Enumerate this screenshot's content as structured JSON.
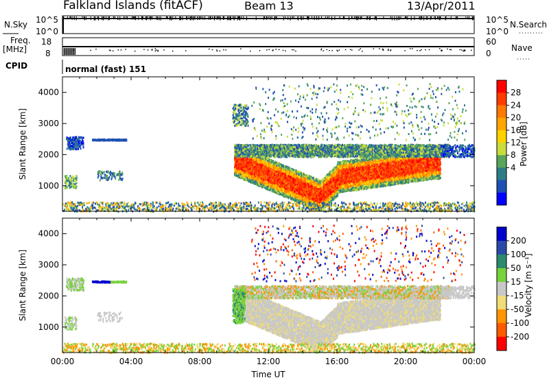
{
  "header": {
    "station": "Falkland Islands (fitACF)",
    "beam": "Beam 13",
    "date": "13/Apr/2011"
  },
  "top_panels": {
    "nsky_label": "N.Sky",
    "nsky_ticks": [
      "10^5",
      "10^0"
    ],
    "nsearch_label": "N.Search",
    "nsearch_ticks": [
      "10^5",
      "10^0"
    ],
    "freq_label": "Freq.",
    "freq_unit": "[MHz]",
    "freq_ticks": [
      "18",
      "8"
    ],
    "nave_label": "Nave",
    "nave_ticks": [
      "60",
      "0"
    ],
    "cpid_label": "CPID",
    "cpid_value": "normal (fast) 151"
  },
  "chart_data": [
    {
      "type": "heatmap",
      "name": "power",
      "ylabel": "Slant Range [km]",
      "yticks": [
        "4000",
        "3000",
        "2000",
        "1000"
      ],
      "ylim": [
        180,
        4500
      ],
      "xlim": [
        0,
        24
      ],
      "colorbar": {
        "label": "Power [dB]",
        "ticks": [
          "28",
          "24",
          "20",
          "16",
          "12",
          "8",
          "4"
        ],
        "colors": [
          "#ff0000",
          "#ff3c00",
          "#ff7800",
          "#ffa500",
          "#ffd200",
          "#c8dc3c",
          "#5aa55a",
          "#2d7d87",
          "#1e50b4",
          "#0000ff"
        ]
      }
    },
    {
      "type": "heatmap",
      "name": "velocity",
      "ylabel": "Slant Range [km]",
      "yticks": [
        "4000",
        "3000",
        "2000",
        "1000"
      ],
      "ylim": [
        180,
        4500
      ],
      "xlim": [
        0,
        24
      ],
      "xticks": [
        "00:00",
        "04:00",
        "08:00",
        "12:00",
        "16:00",
        "20:00",
        "00:00"
      ],
      "xlabel": "Time UT",
      "colorbar": {
        "label": "Velocity [m s⁻¹]",
        "ticks": [
          "200",
          "100",
          "50",
          "15",
          "-15",
          "-50",
          "-100",
          "-200"
        ],
        "colors": [
          "#0000cc",
          "#2a4aa8",
          "#2d8a6e",
          "#78d23c",
          "#c8c8c8",
          "#f0dc78",
          "#ff9600",
          "#ff5a00",
          "#ff0000"
        ]
      }
    }
  ]
}
